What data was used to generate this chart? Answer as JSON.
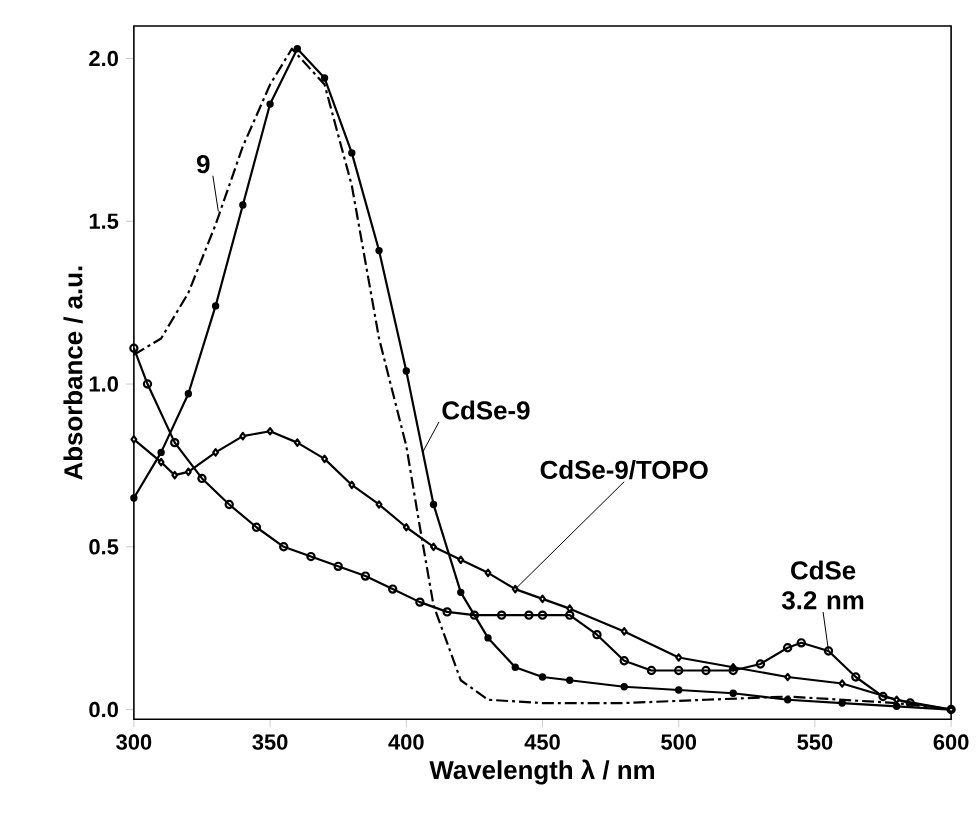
{
  "chart_data": {
    "type": "line",
    "xlabel": "Wavelength λ / nm",
    "ylabel": "Absorbance / a.u.",
    "xlim": [
      300,
      600
    ],
    "ylim": [
      -0.03,
      2.1
    ],
    "xticks": [
      300,
      350,
      400,
      450,
      500,
      550,
      600
    ],
    "yticks": [
      {
        "value": 0,
        "label": "0.0"
      },
      {
        "value": 0.5,
        "label": "0.5"
      },
      {
        "value": 1,
        "label": "1.0"
      },
      {
        "value": 1.5,
        "label": "1.5"
      },
      {
        "value": 2,
        "label": "2.0"
      }
    ],
    "grid": false,
    "legend": false,
    "series": [
      {
        "name": "9",
        "color": "#000000",
        "line_style": "dashdot",
        "marker": "none",
        "x": [
          300,
          310,
          320,
          330,
          340,
          350,
          358,
          370,
          380,
          390,
          400,
          405,
          410,
          420,
          430,
          450,
          480,
          510,
          540,
          560,
          580,
          600
        ],
        "values": [
          1.09,
          1.14,
          1.28,
          1.49,
          1.73,
          1.92,
          2.03,
          1.92,
          1.61,
          1.14,
          0.81,
          0.56,
          0.32,
          0.09,
          0.03,
          0.02,
          0.02,
          0.03,
          0.04,
          0.03,
          0.02,
          0.0
        ]
      },
      {
        "name": "CdSe-9",
        "color": "#000000",
        "line_style": "solid",
        "marker": "circle",
        "x": [
          300,
          310,
          320,
          330,
          340,
          350,
          360,
          370,
          380,
          390,
          400,
          410,
          420,
          430,
          440,
          450,
          460,
          480,
          500,
          520,
          540,
          560,
          580,
          600
        ],
        "values": [
          0.65,
          0.79,
          0.97,
          1.24,
          1.55,
          1.86,
          2.03,
          1.94,
          1.71,
          1.41,
          1.04,
          0.63,
          0.36,
          0.22,
          0.13,
          0.1,
          0.09,
          0.07,
          0.06,
          0.05,
          0.03,
          0.02,
          0.01,
          0.0
        ]
      },
      {
        "name": "CdSe-9/TOPO",
        "color": "#000000",
        "line_style": "solid",
        "marker": "diamond",
        "x": [
          300,
          310,
          315,
          320,
          330,
          340,
          350,
          360,
          370,
          380,
          390,
          400,
          410,
          420,
          430,
          440,
          450,
          460,
          480,
          500,
          520,
          540,
          560,
          580,
          600
        ],
        "values": [
          0.83,
          0.76,
          0.72,
          0.73,
          0.79,
          0.84,
          0.855,
          0.82,
          0.77,
          0.69,
          0.63,
          0.56,
          0.5,
          0.46,
          0.42,
          0.37,
          0.34,
          0.31,
          0.24,
          0.16,
          0.13,
          0.1,
          0.08,
          0.03,
          0.0
        ]
      },
      {
        "name": "CdSe 3.2 nm",
        "color": "#000000",
        "line_style": "solid",
        "marker": "circle_open",
        "x": [
          300,
          305,
          315,
          325,
          335,
          345,
          355,
          365,
          375,
          385,
          395,
          405,
          415,
          425,
          435,
          445,
          450,
          460,
          470,
          480,
          490,
          500,
          510,
          520,
          530,
          540,
          545,
          555,
          565,
          575,
          585,
          600
        ],
        "values": [
          1.11,
          1.0,
          0.82,
          0.71,
          0.63,
          0.56,
          0.5,
          0.47,
          0.44,
          0.41,
          0.37,
          0.33,
          0.3,
          0.29,
          0.29,
          0.29,
          0.29,
          0.29,
          0.23,
          0.15,
          0.12,
          0.12,
          0.12,
          0.12,
          0.14,
          0.19,
          0.205,
          0.18,
          0.1,
          0.04,
          0.02,
          0.0
        ]
      }
    ]
  }
}
